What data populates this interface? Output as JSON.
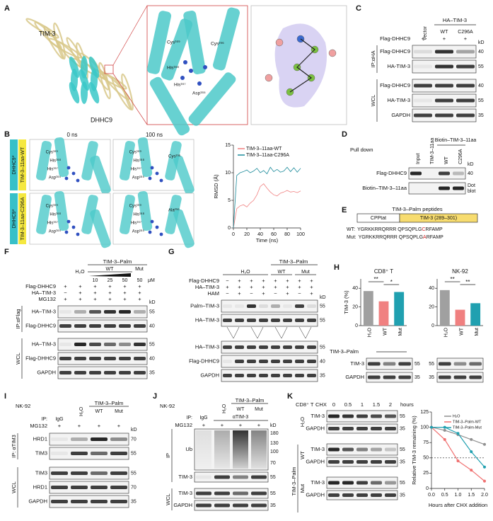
{
  "A": {
    "letter": "A",
    "tim3": "TIM-3",
    "dhhc9": "DHHC9",
    "cys169": "Cys¹⁶⁹",
    "cys296": "Cys²⁹⁶",
    "his168": "His¹⁶⁸",
    "his167": "His¹⁶⁷",
    "asp165": "Asp¹⁶⁵"
  },
  "B": {
    "letter": "B",
    "times": [
      "0 ns",
      "100 ns"
    ],
    "rows": [
      {
        "enzyme": "DHHC9*",
        "peptide": "TIM-3–11aa-WT",
        "res": [
          "Cys¹⁶⁹",
          "His¹⁶⁸",
          "His¹⁶⁷",
          "Asp¹⁶⁵"
        ],
        "target": "Cys²⁹⁶"
      },
      {
        "enzyme": "DHHC9*",
        "peptide": "TIM-3–11aa-C296A",
        "res": [
          "Cys¹⁶⁹",
          "His¹⁶⁸",
          "His¹⁶⁷",
          "Asp¹⁶⁵"
        ],
        "target": "Ala²⁹⁶"
      }
    ]
  },
  "C": {
    "letter": "C",
    "group": "HA–TIM-3",
    "lanes": [
      "Vector",
      "WT",
      "C296A"
    ],
    "treats": [
      {
        "name": "Flag-DHHC9",
        "signs": [
          "+",
          "+",
          "+"
        ]
      }
    ],
    "kd": "kD",
    "sections": [
      {
        "name": "IP:αHA",
        "blots": [
          {
            "label": "Flag-DHHC9",
            "kd": "40"
          },
          {
            "label": "HA-TIM-3",
            "kd": "55"
          }
        ]
      },
      {
        "name": "WCL",
        "blots": [
          {
            "label": "Flag-DHHC9",
            "kd": "40"
          },
          {
            "label": "HA-TIM-3",
            "kd": "55"
          },
          {
            "label": "GAPDH",
            "kd": "35"
          }
        ]
      }
    ]
  },
  "D": {
    "letter": "D",
    "pulldown": "Pull down",
    "lanes": [
      "Input",
      "TIM-3–11aa",
      "WT",
      "C296A"
    ],
    "group": "Biotin–TIM-3–11aa",
    "kd": "kD",
    "sections": [
      {
        "blots": [
          {
            "label": "Flag-DHHC9",
            "kd": "40"
          },
          {
            "label": "Biotin–TIM-3–11aa",
            "kd": [
              "Dot",
              "blot"
            ]
          }
        ]
      }
    ]
  },
  "E": {
    "letter": "E",
    "title": "TIM-3–Palm peptides",
    "cpp": "CPPtat",
    "tim": "TIM-3 (289–301)",
    "seqs": [
      {
        "tag": "WT:",
        "pre": "YGRKKRRQRRR QPSQPLG",
        "mut": "C",
        "post": "RFAMP"
      },
      {
        "tag": "Mut:",
        "pre": "YGRKKRRQRRR QPSQPLG",
        "mut": "A",
        "post": "RFAMP"
      }
    ]
  },
  "F": {
    "letter": "F",
    "palm": "TIM-3–Palm",
    "h2o": "H₂O",
    "wt": "WT",
    "mut": "Mut",
    "conc": [
      "10",
      "25",
      "50",
      "50"
    ],
    "unit": "μM",
    "treats": [
      {
        "name": "Flag-DHHC9",
        "signs": [
          "+",
          "+",
          "+",
          "+",
          "+",
          "+"
        ]
      },
      {
        "name": "HA–TIM-3",
        "signs": [
          "−",
          "+",
          "+",
          "+",
          "+",
          "+"
        ]
      },
      {
        "name": "MG132",
        "signs": [
          "+",
          "+",
          "+",
          "+",
          "+",
          "+"
        ]
      }
    ],
    "kd": "kD",
    "sections": [
      {
        "name": "IP:αFlag",
        "blots": [
          {
            "label": "HA–TIM-3",
            "kd": "55"
          },
          {
            "label": "Flag-DHHC9",
            "kd": "40"
          }
        ]
      },
      {
        "name": "WCL",
        "blots": [
          {
            "label": "HA–TIM-3",
            "kd": "55"
          },
          {
            "label": "Flag-DHHC9",
            "kd": "40"
          },
          {
            "label": "GAPDH",
            "kd": "35"
          }
        ]
      }
    ]
  },
  "G": {
    "letter": "G",
    "palm": "TIM-3–Palm",
    "h2o": "H₂O",
    "wt": "WT",
    "mut": "Mut",
    "treats": [
      {
        "name": "Flag-DHHC9",
        "signs": [
          "−",
          "+",
          "+",
          "+",
          "+",
          "+",
          "+",
          "+"
        ]
      },
      {
        "name": "HA–TIM-3",
        "signs": [
          "+",
          "+",
          "+",
          "+",
          "+",
          "+",
          "+",
          "+"
        ]
      },
      {
        "name": "HAM",
        "signs": [
          "−",
          "+",
          "−",
          "+",
          "−",
          "+",
          "−",
          "+"
        ]
      }
    ],
    "kd": "kD",
    "sections": [
      {
        "blots": [
          {
            "label": "Palm–TIM-3",
            "kd": "55"
          },
          {
            "label": "HA–TIM-3",
            "kd": "55"
          }
        ]
      },
      {
        "blots": [
          {
            "label": "HA–TIM-3",
            "kd": "55"
          },
          {
            "label": "Flag-DHHC9",
            "kd": "40"
          },
          {
            "label": "GAPDH",
            "kd": "35"
          }
        ]
      }
    ]
  },
  "H": {
    "letter": "H",
    "palm": "TIM-3–Palm",
    "sig_left": [
      "**",
      "*"
    ],
    "sig_right": [
      "**",
      "**"
    ],
    "blots": [
      "TIM-3",
      "GAPDH"
    ],
    "kd_left": [
      "55",
      "35"
    ],
    "kd_right": [
      "55",
      "35"
    ]
  },
  "I": {
    "letter": "I",
    "cell": "NK-92",
    "h2o": "H₂O",
    "palm": "TIM-3–Palm",
    "wt": "WT",
    "mut": "Mut",
    "ip": "IP:",
    "igg": "IgG",
    "treats": [
      {
        "name": "MG132",
        "signs": [
          "+",
          "+",
          "+",
          "+"
        ]
      }
    ],
    "kd": "kD",
    "sections": [
      {
        "name": "IP: αTIM3",
        "blots": [
          {
            "label": "HRD1",
            "kd": "70"
          },
          {
            "label": "TIM3",
            "kd": "55"
          }
        ]
      },
      {
        "name": "WCL",
        "blots": [
          {
            "label": "TIM3",
            "kd": "55"
          },
          {
            "label": "HRD1",
            "kd": "70"
          },
          {
            "label": "GAPDH",
            "kd": "35"
          }
        ]
      }
    ]
  },
  "J": {
    "letter": "J",
    "cell": "NK-92",
    "h2o": "H₂O",
    "palm": "TIM-3–Palm",
    "wt": "WT",
    "mut": "Mut",
    "ip": "IP:",
    "igg": "IgG",
    "anti": "αTIM-3",
    "treats": [
      {
        "name": "MG132",
        "signs": [
          "+",
          "+",
          "+",
          "+"
        ]
      }
    ],
    "kd": "kD",
    "sections": [
      {
        "name": "IP",
        "blots": [
          {
            "label": "Ub",
            "kd": [
              "180",
              "130",
              "100",
              "70"
            ]
          },
          {
            "label": "TIM-3",
            "kd": "55"
          }
        ]
      },
      {
        "name": "WCL",
        "blots": [
          {
            "label": "TIM-3",
            "kd": "55"
          },
          {
            "label": "GAPDH",
            "kd": "35"
          }
        ]
      }
    ]
  },
  "K": {
    "letter": "K",
    "cell": "CD8⁺ T",
    "chx": "CHX",
    "times": [
      "0",
      "0.5",
      "1",
      "1.5",
      "2"
    ],
    "hours": "hours",
    "palm": "TIM-3–Palm",
    "groups": [
      "H₂O",
      "WT",
      "Mut"
    ],
    "blots": [
      {
        "label": "TIM-3",
        "kd": "55"
      },
      {
        "label": "GAPDH",
        "kd": "35"
      }
    ]
  },
  "chart_data": [
    {
      "type": "line",
      "xlabel": "Time (ns)",
      "ylabel": "RMSD (Å)",
      "x": [
        0,
        5,
        10,
        15,
        20,
        25,
        30,
        35,
        40,
        45,
        50,
        55,
        60,
        65,
        70,
        75,
        80,
        85,
        90,
        95,
        100
      ],
      "xlim": [
        0,
        100
      ],
      "xticks": [
        0,
        20,
        40,
        60,
        80,
        100
      ],
      "ylim": [
        0,
        15
      ],
      "yticks": [
        0,
        5,
        10,
        15
      ],
      "legend": "top",
      "series": [
        {
          "name": "TIM-3–11aa-WT",
          "color": "#f08080",
          "values": [
            0,
            3.5,
            4,
            4.2,
            3.8,
            4.5,
            5,
            6,
            7.5,
            8,
            7.2,
            6.5,
            6,
            5.8,
            6.3,
            6.5,
            6.8,
            6.5,
            6.6,
            6.4,
            6.7
          ]
        },
        {
          "name": "TIM-3–11aa-C296A",
          "color": "#1a8a9a",
          "values": [
            0,
            9.5,
            10,
            10.2,
            10.5,
            10,
            10.3,
            10.8,
            10,
            10.4,
            9.8,
            11,
            10.2,
            10.6,
            10.1,
            10.3,
            11,
            10.2,
            10.9,
            10.1,
            10.8
          ]
        }
      ]
    },
    {
      "type": "bar",
      "title": "CD8⁺ T",
      "ylabel": "TIM-3 (%)",
      "categories": [
        "H₂O",
        "WT",
        "Mut"
      ],
      "values": [
        37,
        26,
        36
      ],
      "colors": [
        "#a0a0a0",
        "#f08080",
        "#20a0b0"
      ],
      "ylim": [
        0,
        50
      ],
      "yticks": [
        0,
        20,
        40
      ]
    },
    {
      "type": "bar",
      "title": "NK-92",
      "categories": [
        "H₂O",
        "WT",
        "Mut"
      ],
      "values": [
        38,
        17,
        24
      ],
      "colors": [
        "#a0a0a0",
        "#f08080",
        "#20a0b0"
      ],
      "ylim": [
        0,
        50
      ],
      "yticks": [
        0,
        20,
        40
      ]
    },
    {
      "type": "line",
      "xlabel": "Hours after CHX addition",
      "ylabel": "Relative TIM-3 remaining (%)",
      "x": [
        0,
        0.5,
        1,
        1.5,
        2
      ],
      "xlim": [
        0,
        2
      ],
      "xticks": [
        {
          "value": 0,
          "label": "0.0"
        },
        {
          "value": 0.5,
          "label": "0.5"
        },
        {
          "value": 1,
          "label": "1.0"
        },
        {
          "value": 1.5,
          "label": "1.5"
        },
        {
          "value": 2,
          "label": "2.0"
        }
      ],
      "ylim": [
        0,
        125
      ],
      "yticks": [
        0,
        25,
        50,
        75,
        100,
        125
      ],
      "hline": 50,
      "legend": "top-right",
      "series": [
        {
          "name": "H₂O",
          "color": "#909090",
          "values": [
            100,
            95,
            88,
            80,
            72
          ]
        },
        {
          "name": "TIM-3–Palm-WT",
          "color": "#f07070",
          "values": [
            100,
            80,
            45,
            30,
            12
          ]
        },
        {
          "name": "TIM-3–Palm-Mut",
          "color": "#20a0b0",
          "values": [
            100,
            100,
            90,
            60,
            35
          ]
        }
      ]
    }
  ]
}
